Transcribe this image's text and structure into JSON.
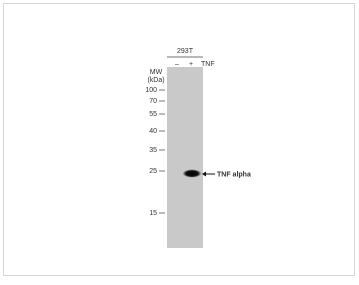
{
  "blot": {
    "cell_line": "293T",
    "lanes": [
      "–",
      "+"
    ],
    "treatment": "TNF",
    "mw_label": "MW",
    "mw_unit": "(kDa)",
    "markers": [
      100,
      70,
      55,
      40,
      35,
      25,
      15
    ],
    "band_label": "TNF alpha"
  }
}
